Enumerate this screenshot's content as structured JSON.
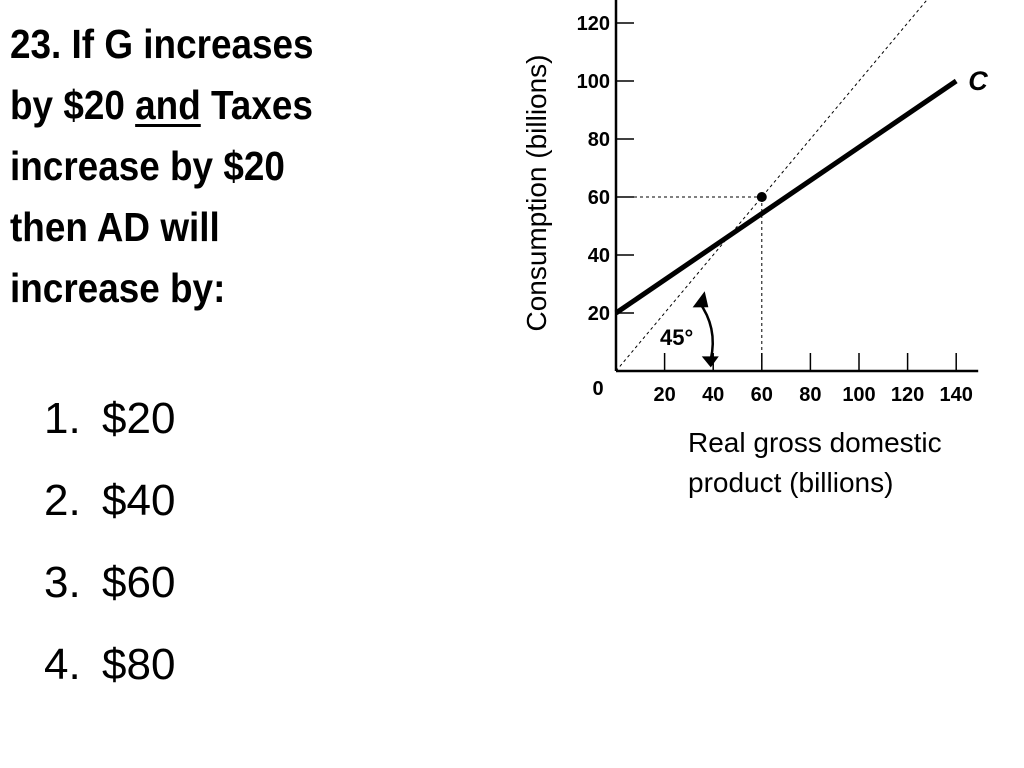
{
  "question": {
    "line1": "23. If G increases",
    "line2_pre": "by $20 ",
    "line2_underlined": "and",
    "line2_post": " Taxes",
    "line3": "increase by $20",
    "line4": "then AD will",
    "line5": "increase by:"
  },
  "options": [
    {
      "num": "1.",
      "label": "$20"
    },
    {
      "num": "2.",
      "label": "$40"
    },
    {
      "num": "3.",
      "label": "$60"
    },
    {
      "num": "4.",
      "label": "$80"
    }
  ],
  "chart_data": {
    "type": "line",
    "xlabel_lines": [
      "Real gross domestic",
      "product (billions)"
    ],
    "ylabel": "Consumption (billions)",
    "xlim": [
      0,
      140
    ],
    "ylim": [
      0,
      120
    ],
    "x_ticks": [
      20,
      40,
      60,
      80,
      100,
      120,
      140
    ],
    "x_tick_labels": [
      "20",
      "40",
      "60",
      "80",
      "100",
      "120",
      "140"
    ],
    "y_ticks": [
      20,
      40,
      60,
      80,
      100,
      120
    ],
    "y_tick_labels": [
      "20",
      "40",
      "60",
      "80",
      "100",
      "120"
    ],
    "origin_label": "0",
    "grid": false,
    "series": [
      {
        "name": "C",
        "style": "solid",
        "x": [
          0,
          140
        ],
        "y": [
          20,
          100
        ]
      },
      {
        "style": "dotted",
        "x": [
          0,
          130
        ],
        "y": [
          0,
          130
        ]
      }
    ],
    "point": {
      "x": 60,
      "y": 60
    },
    "angle_annotation": "45°",
    "colors": {
      "line": "#000000",
      "background": "#ffffff"
    }
  }
}
